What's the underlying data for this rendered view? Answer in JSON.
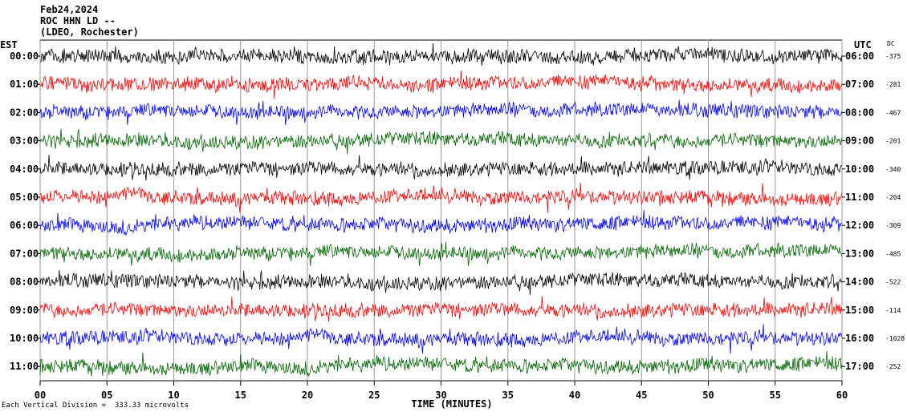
{
  "header": {
    "date": "Feb24,2024",
    "station": "ROC HHN LD --",
    "network": "(LDEO, Rochester)"
  },
  "left_axis_label": "EST",
  "right_axis_label": "UTC",
  "dc_label": "DC",
  "footnote": "Each Vertical Division =  333.33 microvolts",
  "chart_data": {
    "type": "line",
    "title": "ROC HHN LD --",
    "xlabel": "TIME (MINUTES)",
    "xlim": [
      0,
      60
    ],
    "x_ticks": [
      "00",
      "05",
      "10",
      "15",
      "20",
      "25",
      "30",
      "35",
      "40",
      "45",
      "50",
      "55",
      "60"
    ],
    "grid": "vertical lines every 5 minutes",
    "series": [
      {
        "est": "00:00",
        "utc": "06:00",
        "dc": "-375",
        "color": "#000000"
      },
      {
        "est": "01:00",
        "utc": "07:00",
        "dc": "-281",
        "color": "#ff0000"
      },
      {
        "est": "02:00",
        "utc": "08:00",
        "dc": "-467",
        "color": "#0000ff"
      },
      {
        "est": "03:00",
        "utc": "09:00",
        "dc": "-201",
        "color": "#006600"
      },
      {
        "est": "04:00",
        "utc": "10:00",
        "dc": "-340",
        "color": "#000000"
      },
      {
        "est": "05:00",
        "utc": "11:00",
        "dc": "-204",
        "color": "#ff0000"
      },
      {
        "est": "06:00",
        "utc": "12:00",
        "dc": "-309",
        "color": "#0000ff"
      },
      {
        "est": "07:00",
        "utc": "13:00",
        "dc": "-485",
        "color": "#006600"
      },
      {
        "est": "08:00",
        "utc": "14:00",
        "dc": "-522",
        "color": "#000000"
      },
      {
        "est": "09:00",
        "utc": "15:00",
        "dc": "-114",
        "color": "#ff0000"
      },
      {
        "est": "10:00",
        "utc": "16:00",
        "dc": "-1028",
        "color": "#0000ff"
      },
      {
        "est": "11:00",
        "utc": "17:00",
        "dc": "-252",
        "color": "#006600"
      }
    ]
  }
}
